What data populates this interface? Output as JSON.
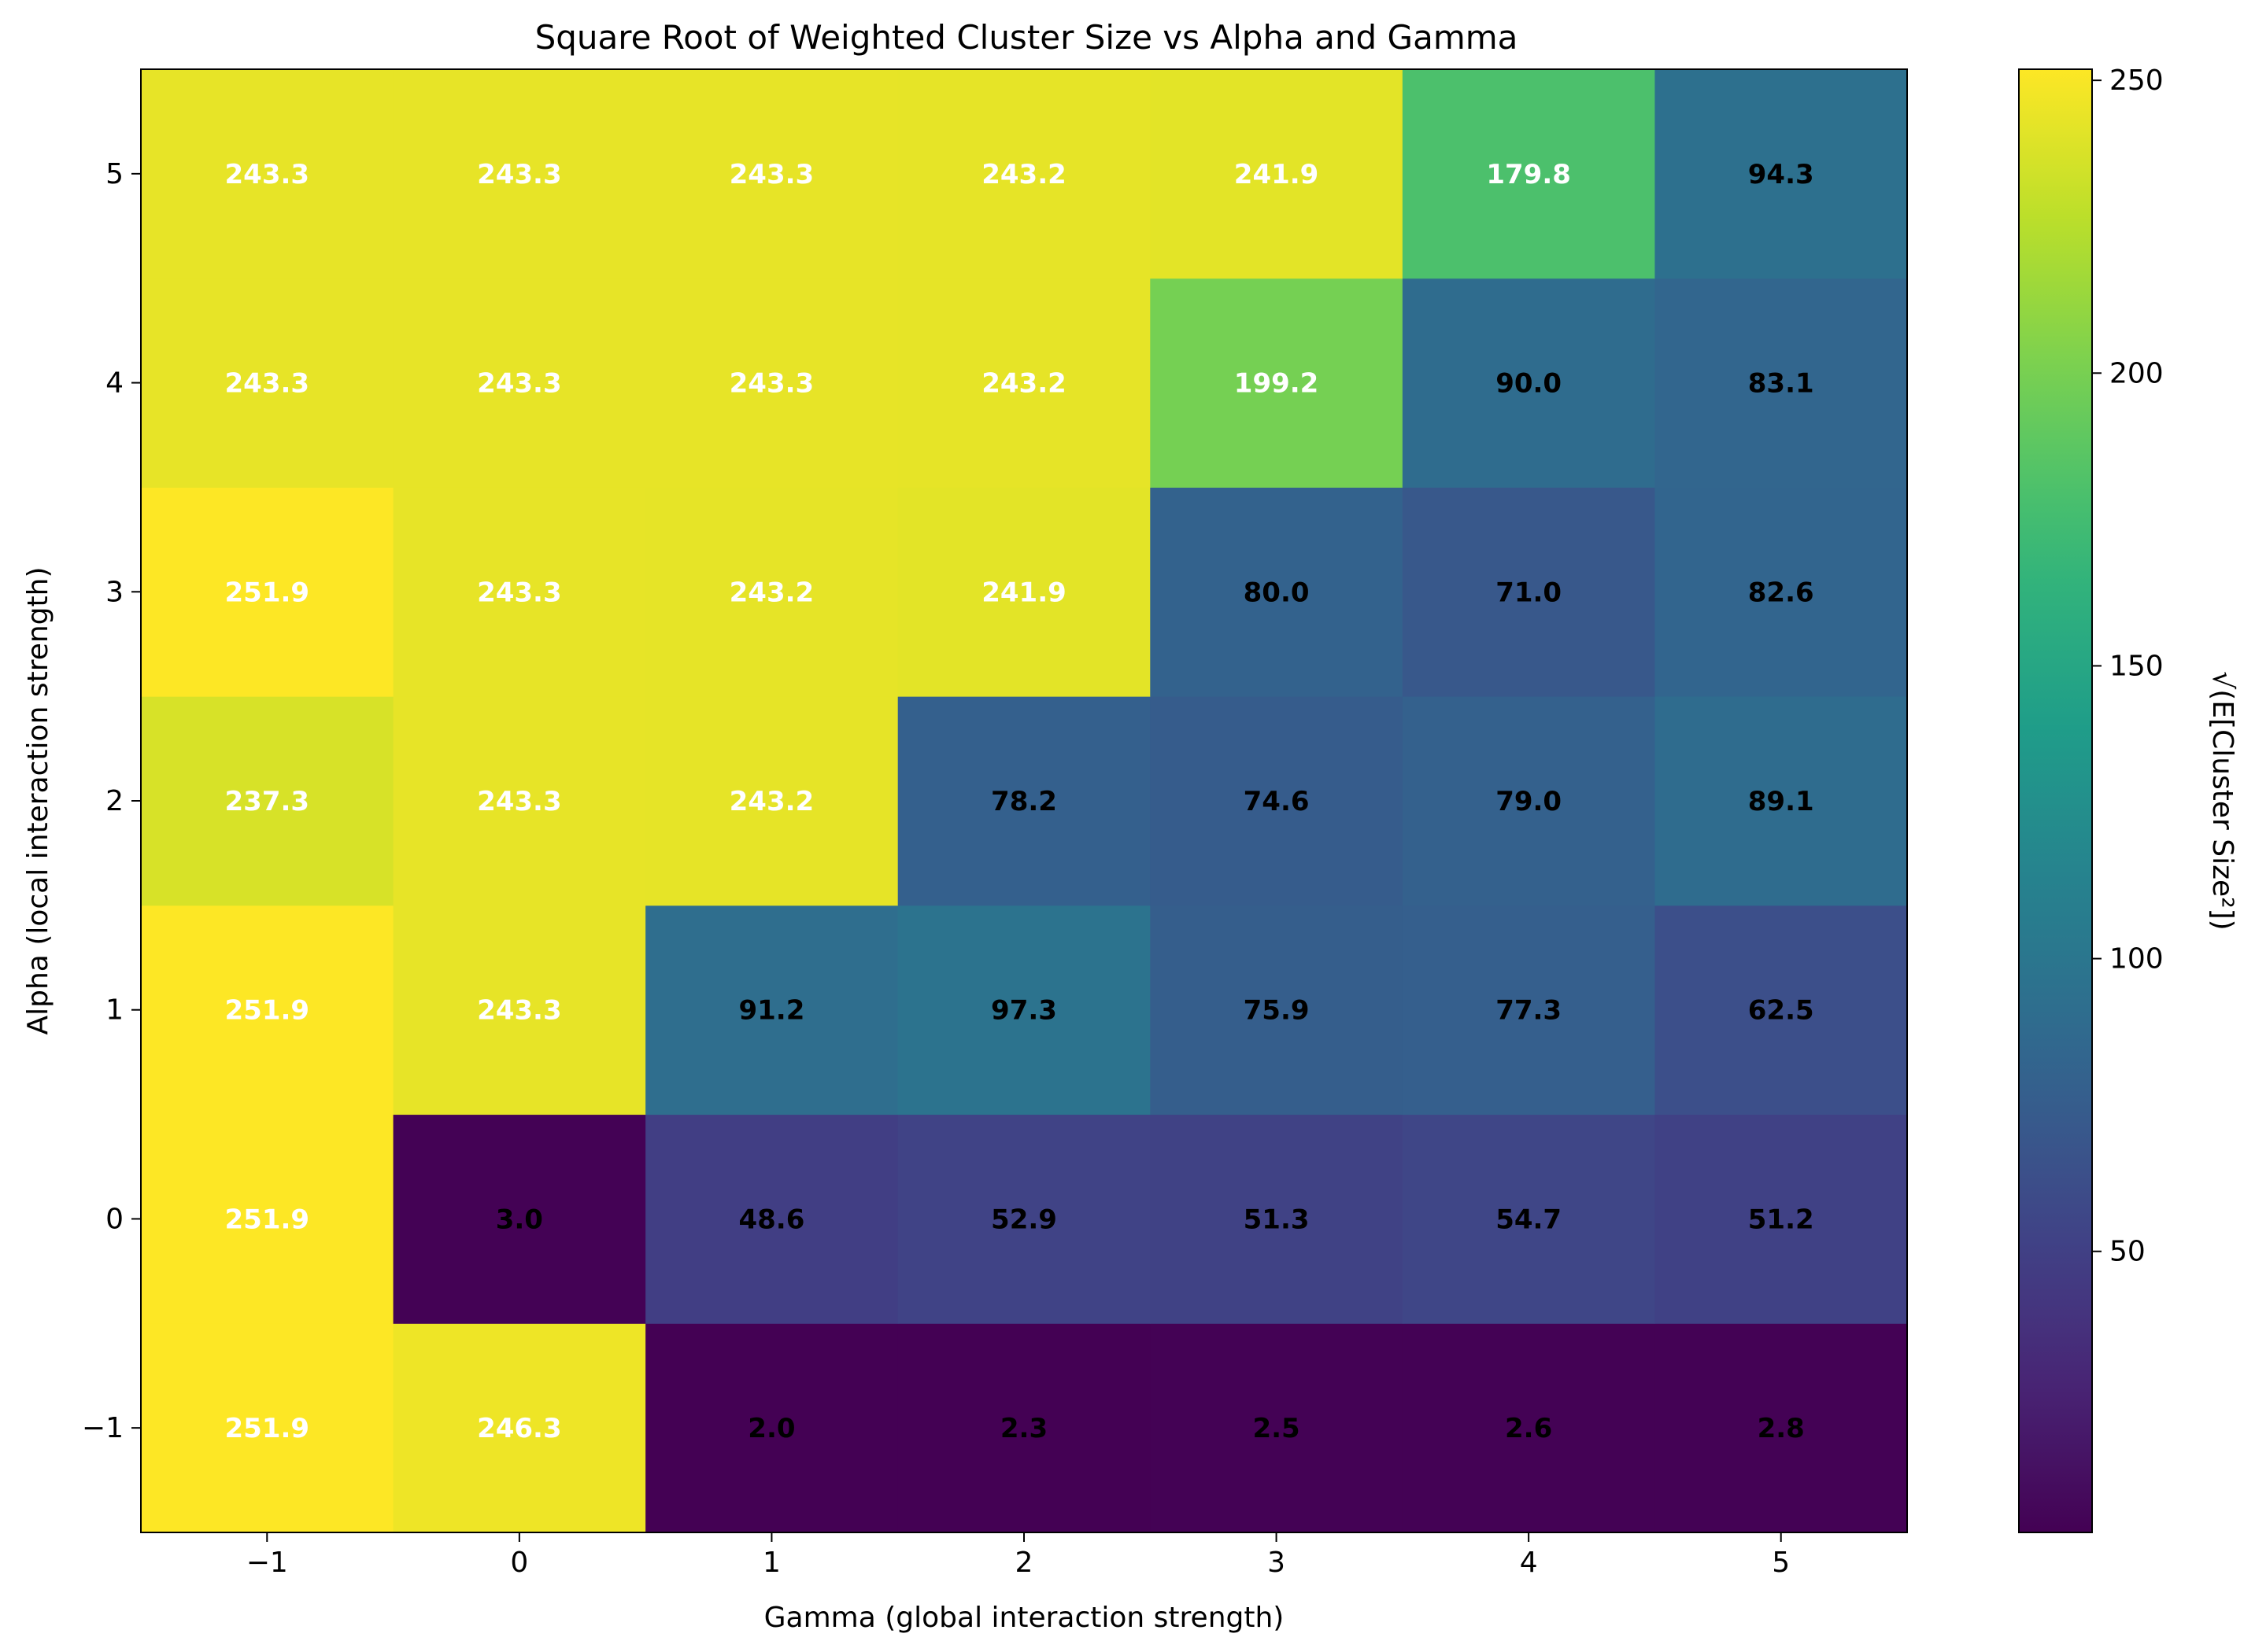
{
  "chart_data": {
    "type": "heatmap",
    "title": "Square Root of Weighted Cluster Size vs Alpha and Gamma",
    "xlabel": "Gamma (global interaction strength)",
    "ylabel": "Alpha (local interaction strength)",
    "x": [
      -1,
      0,
      1,
      2,
      3,
      4,
      5
    ],
    "y": [
      -1,
      0,
      1,
      2,
      3,
      4,
      5
    ],
    "x_tick_labels": [
      "−1",
      "0",
      "1",
      "2",
      "3",
      "4",
      "5"
    ],
    "y_tick_labels": [
      "−1",
      "0",
      "1",
      "2",
      "3",
      "4",
      "5"
    ],
    "values": [
      [
        251.9,
        246.3,
        2.0,
        2.3,
        2.5,
        2.6,
        2.8
      ],
      [
        251.9,
        3.0,
        48.6,
        52.9,
        51.3,
        54.7,
        51.2
      ],
      [
        251.9,
        243.3,
        91.2,
        97.3,
        75.9,
        77.3,
        62.5
      ],
      [
        237.3,
        243.3,
        243.2,
        78.2,
        74.6,
        79.0,
        89.1
      ],
      [
        251.9,
        243.3,
        243.2,
        241.9,
        80.0,
        71.0,
        82.6
      ],
      [
        243.3,
        243.3,
        243.3,
        243.2,
        199.2,
        90.0,
        83.1
      ],
      [
        243.3,
        243.3,
        243.3,
        243.2,
        241.9,
        179.8,
        94.3
      ]
    ],
    "value_labels": [
      [
        "251.9",
        "246.3",
        "2.0",
        "2.3",
        "2.5",
        "2.6",
        "2.8"
      ],
      [
        "251.9",
        "3.0",
        "48.6",
        "52.9",
        "51.3",
        "54.7",
        "51.2"
      ],
      [
        "251.9",
        "243.3",
        "91.2",
        "97.3",
        "75.9",
        "77.3",
        "62.5"
      ],
      [
        "237.3",
        "243.3",
        "243.2",
        "78.2",
        "74.6",
        "79.0",
        "89.1"
      ],
      [
        "251.9",
        "243.3",
        "243.2",
        "241.9",
        "80.0",
        "71.0",
        "82.6"
      ],
      [
        "243.3",
        "243.3",
        "243.3",
        "243.2",
        "199.2",
        "90.0",
        "83.1"
      ],
      [
        "243.3",
        "243.3",
        "243.3",
        "243.2",
        "241.9",
        "179.8",
        "94.3"
      ]
    ],
    "colormap": "viridis",
    "vmin": 2.0,
    "vmax": 251.9,
    "colorbar": {
      "label": "√(E[Cluster Size²])",
      "ticks": [
        50,
        100,
        150,
        200,
        250
      ],
      "tick_labels": [
        "50",
        "100",
        "150",
        "200",
        "250"
      ]
    },
    "grid": false,
    "label_colors": {
      "light": "#ffffff",
      "dark": "#000000"
    }
  }
}
